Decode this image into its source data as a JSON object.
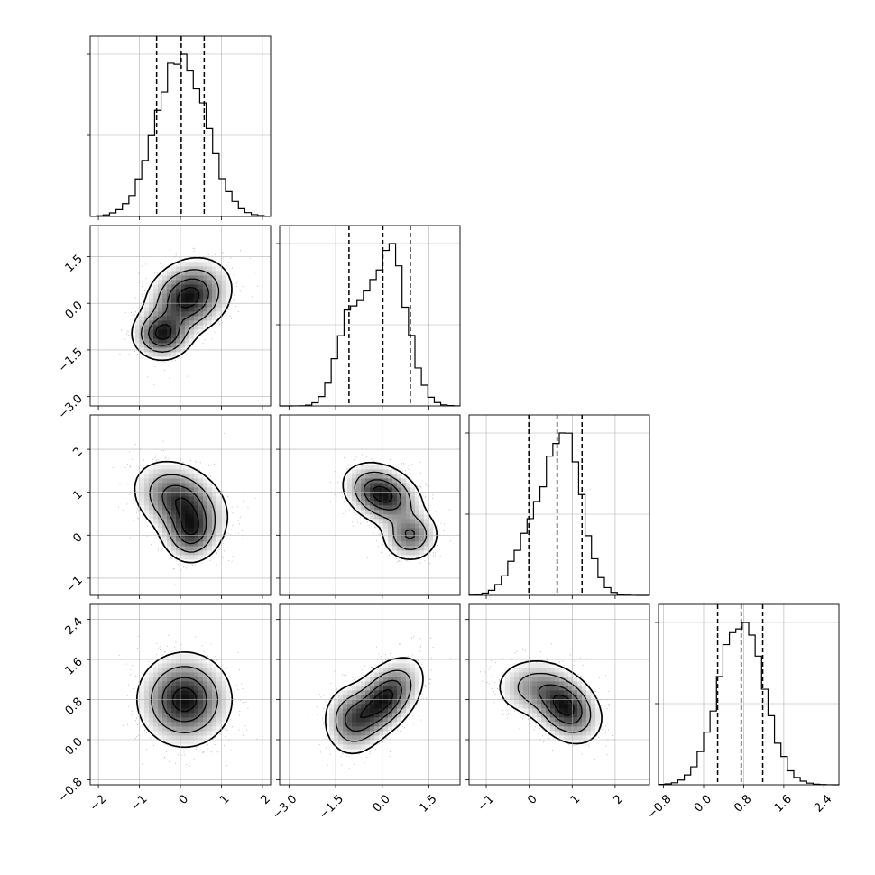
{
  "figure": {
    "type": "corner-plot",
    "colors": {
      "ink": "#000000",
      "grid": "#b0b0b0",
      "background": "#ffffff"
    }
  },
  "chart_data": {
    "type": "corner",
    "grid": true,
    "quantile_lines": "dashed",
    "params": [
      {
        "range": [
          -2.2,
          2.2
        ],
        "ticks": [
          -2,
          -1,
          0,
          1,
          2
        ],
        "tick_labels": [
          "−2",
          "−1",
          "0",
          "1",
          "2"
        ],
        "quantiles": [
          -0.58,
          0.02,
          0.58
        ],
        "mix": [
          [
            0.55,
            0.02,
            0.6
          ]
        ],
        "hist_max": 1.0
      },
      {
        "range": [
          -3.3,
          2.5
        ],
        "ticks": [
          -3.0,
          -1.5,
          0.0,
          1.5
        ],
        "tick_labels": [
          "−3.0",
          "−1.5",
          "0.0",
          "1.5"
        ],
        "quantiles": [
          -1.07,
          0.02,
          0.9
        ],
        "mix": [
          [
            0.68,
            0.25,
            0.55
          ],
          [
            0.32,
            -1.0,
            0.45
          ]
        ],
        "hist_max": 1.0
      },
      {
        "range": [
          -1.4,
          2.8
        ],
        "ticks": [
          -1,
          0,
          1,
          2
        ],
        "tick_labels": [
          "−1",
          "0",
          "1",
          "2"
        ],
        "quantiles": [
          -0.01,
          0.65,
          1.23
        ],
        "mix": [
          [
            0.7,
            0.85,
            0.4
          ],
          [
            0.3,
            0.05,
            0.42
          ]
        ],
        "hist_max": 1.0
      },
      {
        "range": [
          -0.9,
          2.7
        ],
        "ticks": [
          -0.8,
          0.0,
          0.8,
          1.6,
          2.4
        ],
        "tick_labels": [
          "−0.8",
          "0.0",
          "0.8",
          "1.6",
          "2.4"
        ],
        "quantiles": [
          0.28,
          0.75,
          1.18
        ],
        "mix": [
          [
            1.0,
            0.75,
            0.45
          ]
        ],
        "hist_max": 1.0
      }
    ],
    "pairs": [
      {
        "row": 1,
        "col": 0,
        "blobs": [
          {
            "cx": 0.2,
            "cy": 0.2,
            "sx": 0.5,
            "sy": 0.6,
            "r": 0.2,
            "w": 0.7
          },
          {
            "cx": -0.45,
            "cy": -1.0,
            "sx": 0.35,
            "sy": 0.4,
            "r": 0.0,
            "w": 0.3
          }
        ]
      },
      {
        "row": 2,
        "col": 0,
        "blobs": [
          {
            "cx": 0.0,
            "cy": 0.8,
            "sx": 0.55,
            "sy": 0.45,
            "r": -0.3,
            "w": 0.7
          },
          {
            "cx": 0.25,
            "cy": 0.05,
            "sx": 0.35,
            "sy": 0.35,
            "r": 0.0,
            "w": 0.3
          }
        ]
      },
      {
        "row": 2,
        "col": 1,
        "blobs": [
          {
            "cx": 0.0,
            "cy": 0.95,
            "sx": 0.6,
            "sy": 0.35,
            "r": -0.3,
            "w": 0.7
          },
          {
            "cx": 0.9,
            "cy": 0.0,
            "sx": 0.45,
            "sy": 0.3,
            "r": 0.0,
            "w": 0.3
          }
        ]
      },
      {
        "row": 3,
        "col": 0,
        "blobs": [
          {
            "cx": 0.1,
            "cy": 0.8,
            "sx": 0.55,
            "sy": 0.45,
            "r": 0.0,
            "w": 1.0
          }
        ]
      },
      {
        "row": 3,
        "col": 1,
        "blobs": [
          {
            "cx": 0.05,
            "cy": 0.8,
            "sx": 0.6,
            "sy": 0.4,
            "r": 0.5,
            "w": 0.7
          },
          {
            "cx": -1.0,
            "cy": 0.4,
            "sx": 0.45,
            "sy": 0.35,
            "r": 0.0,
            "w": 0.3
          }
        ]
      },
      {
        "row": 3,
        "col": 2,
        "blobs": [
          {
            "cx": 0.85,
            "cy": 0.65,
            "sx": 0.4,
            "sy": 0.35,
            "r": -0.3,
            "w": 0.7
          },
          {
            "cx": 0.05,
            "cy": 1.05,
            "sx": 0.45,
            "sy": 0.3,
            "r": 0.0,
            "w": 0.3
          }
        ]
      }
    ]
  }
}
